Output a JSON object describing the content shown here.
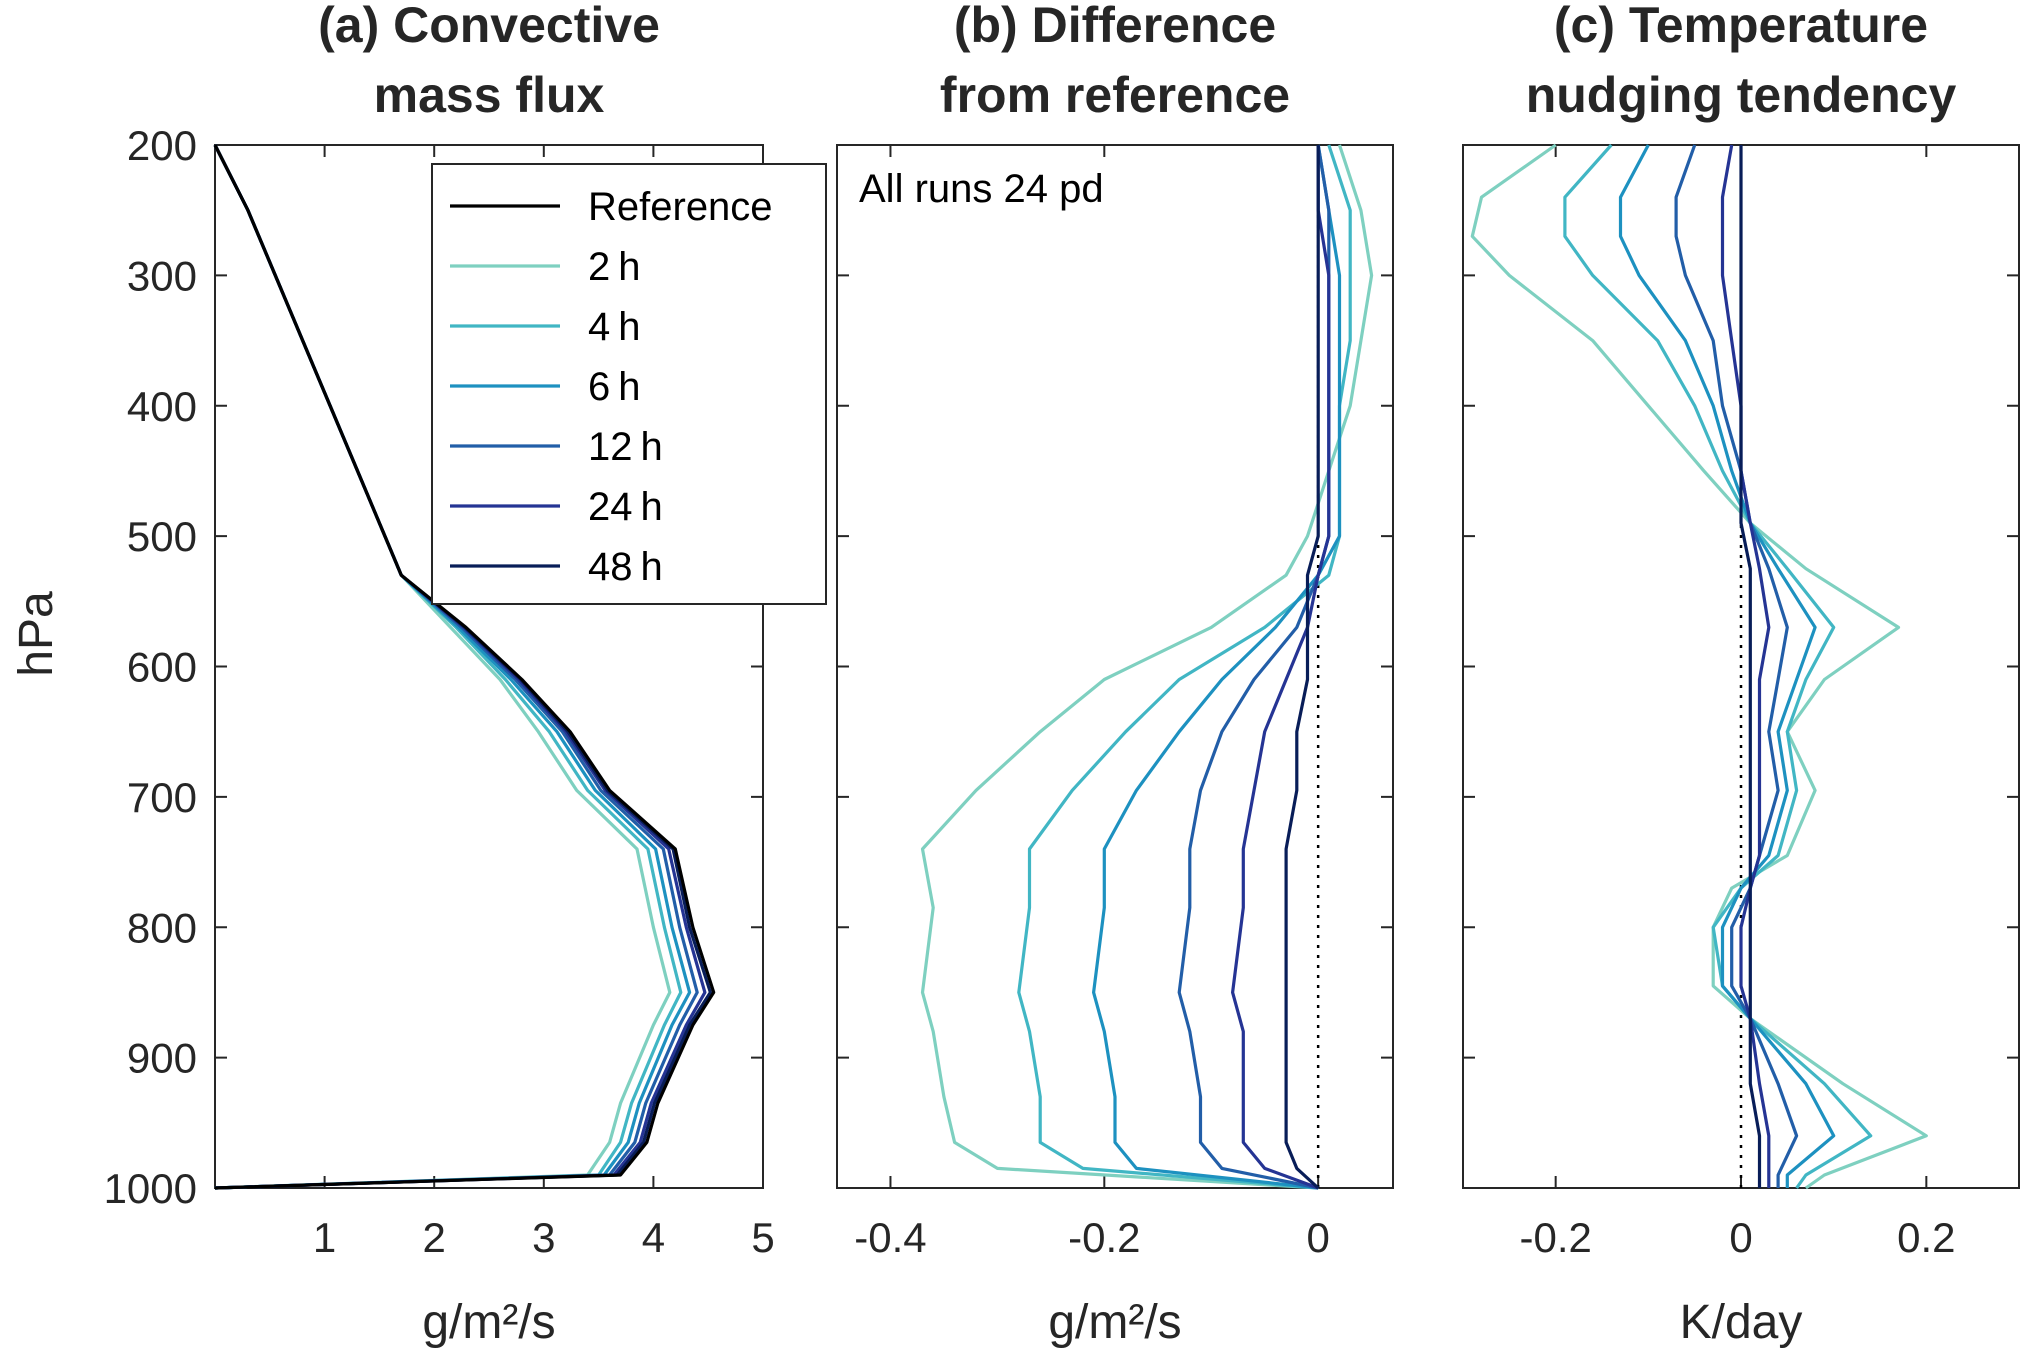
{
  "figure": {
    "ylabel": "hPa",
    "yticks": [
      200,
      300,
      400,
      500,
      600,
      700,
      800,
      900,
      1000
    ]
  },
  "legend": {
    "entries": [
      {
        "label": "Reference",
        "color": "#000000"
      },
      {
        "label": "2 h",
        "color": "#7ed0c0"
      },
      {
        "label": "4 h",
        "color": "#41b6c4"
      },
      {
        "label": "6 h",
        "color": "#1d91c0"
      },
      {
        "label": "12 h",
        "color": "#225ea8"
      },
      {
        "label": "24 h",
        "color": "#253494"
      },
      {
        "label": "48 h",
        "color": "#081d58"
      }
    ]
  },
  "chart_data": [
    {
      "type": "line",
      "title": [
        "(a) Convective",
        "mass flux"
      ],
      "xlabel": "g/m²/s",
      "xlim": [
        0,
        5
      ],
      "xticks": [
        1,
        2,
        3,
        4,
        5
      ],
      "ylim": [
        1000,
        200
      ],
      "y": [
        200,
        250,
        300,
        350,
        400,
        450,
        500,
        530,
        570,
        610,
        650,
        695,
        740,
        800,
        850,
        875,
        935,
        965,
        990,
        1000
      ],
      "series": [
        {
          "name": "2 h",
          "color": "#7ed0c0",
          "values": [
            0.0,
            0.3,
            0.55,
            0.8,
            1.05,
            1.3,
            1.55,
            1.7,
            2.15,
            2.6,
            2.95,
            3.3,
            3.85,
            4.0,
            4.15,
            4.0,
            3.7,
            3.6,
            3.4,
            0.0
          ]
        },
        {
          "name": "4 h",
          "color": "#41b6c4",
          "values": [
            0.0,
            0.3,
            0.55,
            0.8,
            1.05,
            1.3,
            1.55,
            1.7,
            2.2,
            2.65,
            3.05,
            3.4,
            3.95,
            4.1,
            4.25,
            4.1,
            3.8,
            3.7,
            3.5,
            0.0
          ]
        },
        {
          "name": "6 h",
          "color": "#1d91c0",
          "values": [
            0.0,
            0.3,
            0.55,
            0.8,
            1.05,
            1.3,
            1.55,
            1.7,
            2.22,
            2.7,
            3.12,
            3.47,
            4.02,
            4.17,
            4.33,
            4.17,
            3.87,
            3.77,
            3.55,
            0.0
          ]
        },
        {
          "name": "12 h",
          "color": "#225ea8",
          "values": [
            0.0,
            0.3,
            0.55,
            0.8,
            1.05,
            1.3,
            1.55,
            1.7,
            2.25,
            2.74,
            3.17,
            3.52,
            4.09,
            4.24,
            4.4,
            4.24,
            3.93,
            3.83,
            3.6,
            0.0
          ]
        },
        {
          "name": "24 h",
          "color": "#253494",
          "values": [
            0.0,
            0.3,
            0.55,
            0.8,
            1.05,
            1.3,
            1.55,
            1.7,
            2.27,
            2.77,
            3.2,
            3.56,
            4.14,
            4.3,
            4.47,
            4.3,
            3.98,
            3.88,
            3.64,
            0.0
          ]
        },
        {
          "name": "48 h",
          "color": "#081d58",
          "values": [
            0.0,
            0.3,
            0.55,
            0.8,
            1.05,
            1.3,
            1.55,
            1.7,
            2.28,
            2.79,
            3.22,
            3.58,
            4.18,
            4.33,
            4.52,
            4.33,
            4.01,
            3.91,
            3.67,
            0.0
          ]
        },
        {
          "name": "Reference",
          "color": "#000000",
          "values": [
            0.0,
            0.3,
            0.55,
            0.8,
            1.05,
            1.3,
            1.55,
            1.7,
            2.29,
            2.8,
            3.24,
            3.6,
            4.2,
            4.36,
            4.55,
            4.36,
            4.04,
            3.94,
            3.7,
            0.0
          ]
        }
      ]
    },
    {
      "type": "line",
      "title": [
        "(b) Difference",
        "from reference"
      ],
      "annotation": "All runs 24 pd",
      "xlabel": "g/m²/s",
      "xlim": [
        -0.45,
        0.07
      ],
      "xticks": [
        -0.4,
        -0.2,
        0
      ],
      "xtick_labels": [
        "-0.4",
        "-0.2",
        "0"
      ],
      "ylim": [
        1000,
        200
      ],
      "zero_line": 0,
      "y": [
        200,
        250,
        300,
        350,
        400,
        450,
        500,
        530,
        570,
        610,
        650,
        695,
        740,
        785,
        850,
        880,
        930,
        965,
        985,
        1000
      ],
      "series": [
        {
          "name": "2 h",
          "color": "#7ed0c0",
          "values": [
            0.02,
            0.04,
            0.05,
            0.04,
            0.03,
            0.01,
            -0.01,
            -0.03,
            -0.1,
            -0.2,
            -0.26,
            -0.32,
            -0.37,
            -0.36,
            -0.37,
            -0.36,
            -0.35,
            -0.34,
            -0.3,
            0.0
          ]
        },
        {
          "name": "4 h",
          "color": "#41b6c4",
          "values": [
            0.01,
            0.03,
            0.03,
            0.03,
            0.02,
            0.02,
            0.02,
            0.01,
            -0.05,
            -0.13,
            -0.18,
            -0.23,
            -0.27,
            -0.27,
            -0.28,
            -0.27,
            -0.26,
            -0.26,
            -0.22,
            0.0
          ]
        },
        {
          "name": "6 h",
          "color": "#1d91c0",
          "values": [
            0.0,
            0.01,
            0.02,
            0.02,
            0.02,
            0.02,
            0.02,
            0.0,
            -0.04,
            -0.09,
            -0.13,
            -0.17,
            -0.2,
            -0.2,
            -0.21,
            -0.2,
            -0.19,
            -0.19,
            -0.17,
            0.0
          ]
        },
        {
          "name": "12 h",
          "color": "#225ea8",
          "values": [
            0.0,
            0.01,
            0.01,
            0.01,
            0.01,
            0.01,
            0.01,
            0.0,
            -0.02,
            -0.06,
            -0.09,
            -0.11,
            -0.12,
            -0.12,
            -0.13,
            -0.12,
            -0.11,
            -0.11,
            -0.09,
            0.0
          ]
        },
        {
          "name": "24 h",
          "color": "#253494",
          "values": [
            0.0,
            0.0,
            0.01,
            0.01,
            0.01,
            0.01,
            0.01,
            0.0,
            -0.01,
            -0.03,
            -0.05,
            -0.06,
            -0.07,
            -0.07,
            -0.08,
            -0.07,
            -0.07,
            -0.07,
            -0.05,
            0.0
          ]
        },
        {
          "name": "48 h",
          "color": "#081d58",
          "values": [
            0.0,
            0.0,
            0.0,
            0.0,
            0.0,
            0.0,
            0.0,
            -0.01,
            -0.01,
            -0.01,
            -0.02,
            -0.02,
            -0.03,
            -0.03,
            -0.03,
            -0.03,
            -0.03,
            -0.03,
            -0.02,
            0.0
          ]
        }
      ]
    },
    {
      "type": "line",
      "title": [
        "(c) Temperature",
        "nudging tendency"
      ],
      "xlabel": "K/day",
      "xlim": [
        -0.3,
        0.3
      ],
      "xticks": [
        -0.2,
        0,
        0.2
      ],
      "xtick_labels": [
        "-0.2",
        "0",
        "0.2"
      ],
      "ylim": [
        1000,
        200
      ],
      "zero_line": 0,
      "y": [
        200,
        240,
        270,
        300,
        350,
        400,
        450,
        490,
        525,
        570,
        610,
        650,
        695,
        745,
        770,
        800,
        845,
        870,
        920,
        960,
        990,
        1000
      ],
      "series": [
        {
          "name": "2 h",
          "color": "#7ed0c0",
          "values": [
            -0.2,
            -0.28,
            -0.29,
            -0.25,
            -0.16,
            -0.1,
            -0.04,
            0.01,
            0.07,
            0.17,
            0.09,
            0.05,
            0.08,
            0.05,
            -0.01,
            -0.03,
            -0.03,
            0.01,
            0.11,
            0.2,
            0.09,
            0.07
          ]
        },
        {
          "name": "4 h",
          "color": "#41b6c4",
          "values": [
            -0.14,
            -0.19,
            -0.19,
            -0.16,
            -0.09,
            -0.05,
            -0.02,
            0.01,
            0.05,
            0.1,
            0.07,
            0.05,
            0.06,
            0.04,
            0.0,
            -0.03,
            -0.02,
            0.01,
            0.09,
            0.14,
            0.07,
            0.06
          ]
        },
        {
          "name": "6 h",
          "color": "#1d91c0",
          "values": [
            -0.1,
            -0.13,
            -0.13,
            -0.11,
            -0.06,
            -0.03,
            -0.01,
            0.01,
            0.04,
            0.08,
            0.06,
            0.04,
            0.05,
            0.03,
            0.0,
            -0.02,
            -0.02,
            0.01,
            0.07,
            0.1,
            0.05,
            0.05
          ]
        },
        {
          "name": "12 h",
          "color": "#225ea8",
          "values": [
            -0.05,
            -0.07,
            -0.07,
            -0.06,
            -0.03,
            -0.02,
            0.0,
            0.01,
            0.03,
            0.05,
            0.04,
            0.03,
            0.04,
            0.02,
            0.01,
            -0.01,
            -0.01,
            0.01,
            0.04,
            0.06,
            0.04,
            0.04
          ]
        },
        {
          "name": "24 h",
          "color": "#253494",
          "values": [
            -0.01,
            -0.02,
            -0.02,
            -0.02,
            -0.01,
            0.0,
            0.0,
            0.01,
            0.02,
            0.03,
            0.02,
            0.02,
            0.02,
            0.02,
            0.01,
            0.0,
            0.0,
            0.01,
            0.02,
            0.03,
            0.03,
            0.03
          ]
        },
        {
          "name": "48 h",
          "color": "#081d58",
          "values": [
            0.0,
            0.0,
            0.0,
            0.0,
            0.0,
            0.0,
            0.0,
            0.0,
            0.01,
            0.01,
            0.01,
            0.01,
            0.01,
            0.01,
            0.01,
            0.01,
            0.01,
            0.01,
            0.01,
            0.02,
            0.02,
            0.02
          ]
        }
      ]
    }
  ]
}
